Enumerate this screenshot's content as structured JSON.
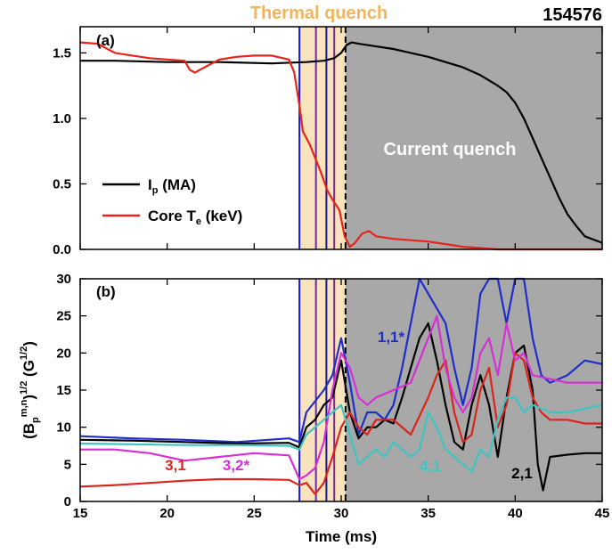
{
  "figure": {
    "shot_number": "154576",
    "thermal_quench_label": "Thermal quench",
    "current_quench_label": "Current quench",
    "thermal_quench_color": "#f9e3bd",
    "current_quench_color": "#a8a8a8",
    "thermal_quench_text_color": "#f2b45c"
  },
  "chart_data": [
    {
      "type": "line",
      "panel_label": "(a)",
      "xlim": [
        15,
        45
      ],
      "ylim": [
        0,
        1.7
      ],
      "x_ticks": [
        15,
        20,
        25,
        30,
        35,
        40,
        45
      ],
      "y_ticks": [
        "0.0",
        "0.5",
        "1.0",
        "1.5"
      ],
      "y_tick_values": [
        0,
        0.5,
        1.0,
        1.5
      ],
      "regions": [
        {
          "name": "thermal-quench",
          "x0": 27.6,
          "x1": 30.25
        },
        {
          "name": "current-quench",
          "x0": 30.25,
          "x1": 45
        }
      ],
      "vlines": [
        {
          "x": 27.6,
          "color": "#1a1ad6",
          "style": "solid"
        },
        {
          "x": 28.55,
          "color": "#6b2aa8",
          "style": "solid"
        },
        {
          "x": 29.15,
          "color": "#1a1a8a",
          "style": "solid"
        },
        {
          "x": 29.6,
          "color": "#7b2a8f",
          "style": "solid"
        },
        {
          "x": 30.25,
          "color": "#000000",
          "style": "dashed"
        }
      ],
      "annotation": "Current quench",
      "legend_position": "bottom-left",
      "series": [
        {
          "name": "I_p (MA)",
          "color": "#000000",
          "x": [
            15,
            17,
            20,
            23,
            26,
            28,
            29,
            29.6,
            30,
            30.3,
            30.6,
            31,
            32,
            33,
            34,
            35,
            36,
            37,
            38,
            38.5,
            39,
            39.5,
            40,
            40.5,
            41,
            41.5,
            42,
            42.5,
            43,
            43.5,
            44,
            45
          ],
          "y": [
            1.44,
            1.44,
            1.43,
            1.43,
            1.42,
            1.43,
            1.44,
            1.46,
            1.5,
            1.56,
            1.58,
            1.57,
            1.55,
            1.53,
            1.5,
            1.47,
            1.43,
            1.39,
            1.33,
            1.29,
            1.25,
            1.2,
            1.12,
            1.0,
            0.85,
            0.7,
            0.55,
            0.4,
            0.27,
            0.18,
            0.1,
            0.05
          ]
        },
        {
          "name": "Core T_e (keV)",
          "color": "#e8231a",
          "x": [
            15,
            16,
            17,
            18,
            19,
            20,
            21,
            21.3,
            21.6,
            22,
            23,
            24,
            25,
            26,
            27,
            27.3,
            27.6,
            27.8,
            28.2,
            28.5,
            28.8,
            29.2,
            29.5,
            29.9,
            30.2,
            30.5,
            30.8,
            31.2,
            31.6,
            32,
            33,
            34,
            35,
            36,
            37,
            38,
            39,
            40,
            41,
            42,
            43,
            45
          ],
          "y": [
            1.58,
            1.57,
            1.5,
            1.48,
            1.46,
            1.45,
            1.44,
            1.37,
            1.35,
            1.38,
            1.45,
            1.47,
            1.48,
            1.48,
            1.45,
            1.35,
            1.1,
            0.9,
            0.8,
            0.7,
            0.6,
            0.45,
            0.38,
            0.3,
            0.1,
            0.02,
            0.05,
            0.12,
            0.14,
            0.1,
            0.08,
            0.07,
            0.06,
            0.04,
            0.02,
            0.01,
            0.0,
            0.0,
            0.0,
            0.0,
            0.0,
            0.0
          ]
        }
      ]
    },
    {
      "type": "line",
      "panel_label": "(b)",
      "xlabel": "Time (ms)",
      "ylabel": "(B_p^{m,n})^{1/2} (G^{1/2})",
      "xlim": [
        15,
        45
      ],
      "ylim": [
        0,
        30
      ],
      "x_ticks": [
        15,
        20,
        25,
        30,
        35,
        40,
        45
      ],
      "y_ticks": [
        0,
        5,
        10,
        15,
        20,
        25,
        30
      ],
      "regions": [
        {
          "name": "thermal-quench",
          "x0": 27.6,
          "x1": 30.25
        },
        {
          "name": "current-quench",
          "x0": 30.25,
          "x1": 45
        }
      ],
      "series": [
        {
          "name": "1,1*",
          "color": "#1f2ec9",
          "x": [
            15,
            18,
            21,
            24,
            27,
            27.6,
            28,
            28.5,
            29,
            29.5,
            30,
            30.5,
            31,
            31.5,
            32,
            32.5,
            33,
            33.5,
            34,
            34.5,
            35,
            35.5,
            36,
            36.5,
            37,
            37.5,
            38,
            38.5,
            39,
            39.5,
            40,
            40.5,
            41,
            41.5,
            42,
            43,
            44,
            45
          ],
          "y": [
            8.8,
            8.5,
            8.3,
            8.0,
            8.5,
            8.0,
            12,
            13.5,
            15,
            17,
            22,
            16,
            9,
            12,
            12,
            11,
            13,
            18,
            24,
            30,
            28,
            26,
            24,
            18,
            13,
            18,
            28,
            32,
            30,
            24,
            30,
            33,
            22,
            17,
            16,
            17,
            19,
            18.5
          ]
        },
        {
          "name": "2,1",
          "color": "#000000",
          "x": [
            15,
            18,
            21,
            24,
            27,
            27.6,
            28,
            28.5,
            29,
            29.5,
            30,
            30.5,
            31,
            31.5,
            32,
            32.5,
            33,
            33.5,
            34,
            34.5,
            35,
            35.5,
            36,
            36.5,
            37,
            37.5,
            38,
            38.5,
            39,
            39.5,
            40,
            40.5,
            41,
            41.3,
            41.6,
            42,
            43,
            44,
            45
          ],
          "y": [
            8.3,
            8.2,
            8.0,
            7.8,
            7.9,
            7.3,
            10,
            11,
            13,
            14,
            19,
            12,
            8.5,
            10,
            10,
            11,
            10.5,
            14,
            18,
            22,
            24,
            19,
            13,
            8,
            7,
            13,
            17,
            13,
            6,
            14,
            20,
            21,
            15,
            5,
            1.5,
            6,
            6.3,
            6.5,
            6.5
          ]
        },
        {
          "name": "3,1",
          "color": "#d9251c",
          "x": [
            15,
            17,
            19,
            21,
            23,
            25,
            27,
            27.6,
            28,
            28.5,
            29,
            29.5,
            30,
            30.5,
            31,
            31.5,
            32,
            33,
            34,
            35,
            35.5,
            36,
            36.5,
            37,
            37.5,
            38,
            38.5,
            39,
            39.5,
            40,
            40.5,
            41,
            41.5,
            42,
            43,
            44,
            45
          ],
          "y": [
            2.0,
            2.2,
            2.5,
            2.8,
            3.0,
            3.0,
            2.9,
            2.2,
            2.5,
            1.0,
            2.5,
            6,
            10,
            12,
            10,
            9,
            11,
            11,
            9,
            14,
            17,
            19,
            12,
            8,
            9,
            15,
            18,
            10,
            13,
            20,
            19,
            14,
            12,
            11,
            11,
            10.5,
            10.5
          ]
        },
        {
          "name": "3,2*",
          "color": "#d62fd6",
          "x": [
            15,
            17,
            19,
            21,
            23,
            25,
            27,
            27.6,
            28,
            28.5,
            29,
            29.5,
            30,
            30.5,
            31,
            31.5,
            32,
            33,
            34,
            35,
            35.5,
            36,
            36.5,
            37,
            37.5,
            38,
            38.5,
            39,
            39.5,
            40,
            40.5,
            41,
            42,
            43,
            44,
            45
          ],
          "y": [
            7.0,
            7.0,
            6.5,
            5.5,
            6.0,
            6.5,
            6.2,
            3.0,
            3.5,
            4.5,
            8,
            15,
            20,
            18,
            14,
            13,
            14,
            15,
            16,
            22,
            25,
            18,
            14,
            12,
            14,
            20,
            22,
            17,
            24,
            19,
            20,
            17,
            16.5,
            16,
            16,
            16
          ]
        },
        {
          "name": "4,1",
          "color": "#3fc4c4",
          "x": [
            15,
            18,
            21,
            24,
            27,
            27.6,
            28,
            28.5,
            29,
            29.5,
            30,
            30.5,
            31,
            31.5,
            32,
            32.5,
            33,
            33.5,
            34,
            34.5,
            35,
            35.5,
            36,
            36.5,
            37,
            37.5,
            38,
            38.5,
            39,
            39.5,
            40,
            40.5,
            41,
            41.5,
            42,
            43,
            44,
            45
          ],
          "y": [
            7.8,
            7.7,
            7.6,
            7.6,
            7.5,
            7.0,
            9,
            10,
            11,
            12,
            13,
            9,
            5,
            6,
            7,
            6,
            8,
            7,
            6,
            7,
            12,
            10,
            7,
            6,
            5,
            4,
            7,
            6,
            11,
            14,
            14,
            12,
            13,
            12.5,
            12,
            12,
            12.5,
            13
          ]
        }
      ],
      "series_labels": [
        {
          "text": "3,1",
          "color": "#d9251c"
        },
        {
          "text": "3,2*",
          "color": "#d62fd6"
        },
        {
          "text": "1,1*",
          "color": "#1f2ec9"
        },
        {
          "text": "4,1",
          "color": "#3fc4c4"
        },
        {
          "text": "2,1",
          "color": "#000000"
        }
      ]
    }
  ]
}
